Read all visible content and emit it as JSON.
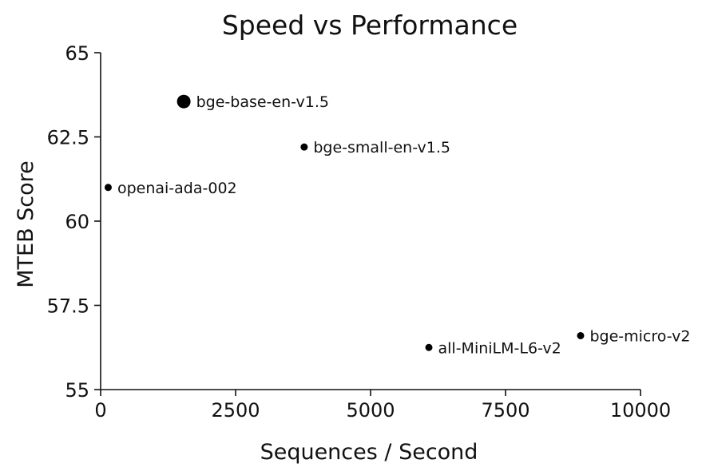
{
  "chart_data": {
    "type": "scatter",
    "title": "Speed vs Performance",
    "xlabel": "Sequences / Second",
    "ylabel": "MTEB Score",
    "xlim": [
      0,
      10000
    ],
    "ylim": [
      55,
      65
    ],
    "xticks": [
      "0",
      "2500",
      "5000",
      "7500",
      "10000"
    ],
    "yticks": [
      "55",
      "57.5",
      "60",
      "62.5",
      "65"
    ],
    "grid": false,
    "points": [
      {
        "label": "bge-base-en-v1.5",
        "x": 1540,
        "y": 63.55,
        "size": "large"
      },
      {
        "label": "bge-small-en-v1.5",
        "x": 3770,
        "y": 62.2,
        "size": "small"
      },
      {
        "label": "openai-ada-002",
        "x": 140,
        "y": 61.0,
        "size": "small"
      },
      {
        "label": "all-MiniLM-L6-v2",
        "x": 6080,
        "y": 56.25,
        "size": "small"
      },
      {
        "label": "bge-micro-v2",
        "x": 8890,
        "y": 56.6,
        "size": "small"
      }
    ],
    "colors": {
      "marker": "#000000",
      "text": "#111111"
    }
  }
}
